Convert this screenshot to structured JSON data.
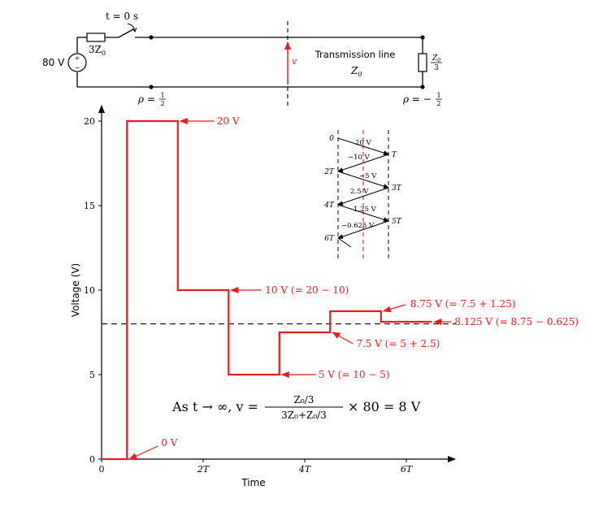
{
  "circuit": {
    "switch_label": "t = 0 s",
    "resistor_label": "3Z",
    "resistor_sub": "0",
    "source_label": "80 V",
    "source_plus": "+",
    "source_minus": "−",
    "probe_label": "v",
    "line_title": "Transmission line",
    "line_impedance": "Z",
    "line_impedance_sub": "0",
    "rho_source": "ρ = ",
    "rho_source_frac": [
      "1",
      "2"
    ],
    "rho_load": "ρ = −",
    "rho_load_frac": [
      "1",
      "2"
    ],
    "load_label_num": "Z",
    "load_label_num_sub": "0",
    "load_label_den": "3"
  },
  "bounce": {
    "times": [
      "0",
      "T",
      "2T",
      "3T",
      "4T",
      "5T",
      "6T"
    ],
    "wave_labels": [
      "20 V",
      "−10 V",
      "−5 V",
      "2.5 V",
      "1.25 V",
      "−0.625 V"
    ]
  },
  "chart_data": {
    "type": "line",
    "xlabel": "Time",
    "ylabel": "Voltage (V)",
    "xlim": [
      0,
      7
    ],
    "ylim": [
      0,
      20
    ],
    "x_ticks": [
      "0",
      "2T",
      "4T",
      "6T"
    ],
    "x_tick_values": [
      0,
      2,
      4,
      6
    ],
    "y_ticks": [
      "0",
      "5",
      "10",
      "15",
      "20"
    ],
    "y_tick_values": [
      0,
      5,
      10,
      15,
      20
    ],
    "series": [
      {
        "color": "#ee1c1c",
        "points": [
          [
            0,
            0
          ],
          [
            0.5,
            0
          ],
          [
            0.5,
            20
          ],
          [
            1.5,
            20
          ],
          [
            1.5,
            10
          ],
          [
            2.5,
            10
          ],
          [
            2.5,
            5
          ],
          [
            3.5,
            5
          ],
          [
            3.5,
            7.5
          ],
          [
            4.5,
            7.5
          ],
          [
            4.5,
            8.75
          ],
          [
            5.5,
            8.75
          ],
          [
            5.5,
            8.125
          ],
          [
            6.5,
            8.125
          ]
        ]
      }
    ],
    "asymptote": {
      "y": 8,
      "style": "dashed",
      "color": "#000000"
    },
    "annotations": [
      {
        "text": "20 V",
        "x": 1.5,
        "y": 20
      },
      {
        "text": "10 V (= 20 − 10)",
        "x": 2.5,
        "y": 10
      },
      {
        "text": "5 V (= 10 − 5)",
        "x": 3.5,
        "y": 5
      },
      {
        "text": "7.5 V (= 5 + 2.5)",
        "x": 4.5,
        "y": 7.5
      },
      {
        "text": "8.75 V (= 7.5 + 1.25)",
        "x": 5.5,
        "y": 8.75
      },
      {
        "text": "8.125 V (= 8.75 − 0.625)",
        "x": 6.5,
        "y": 8.125
      },
      {
        "text": "0 V",
        "x": 0.5,
        "y": 0
      }
    ],
    "limit_equation": {
      "prefix": "As t → ∞, v = ",
      "frac_num": "Z₀/3",
      "frac_den": "3Z₀+Z₀/3",
      "suffix": "× 80 = 8 V"
    }
  }
}
